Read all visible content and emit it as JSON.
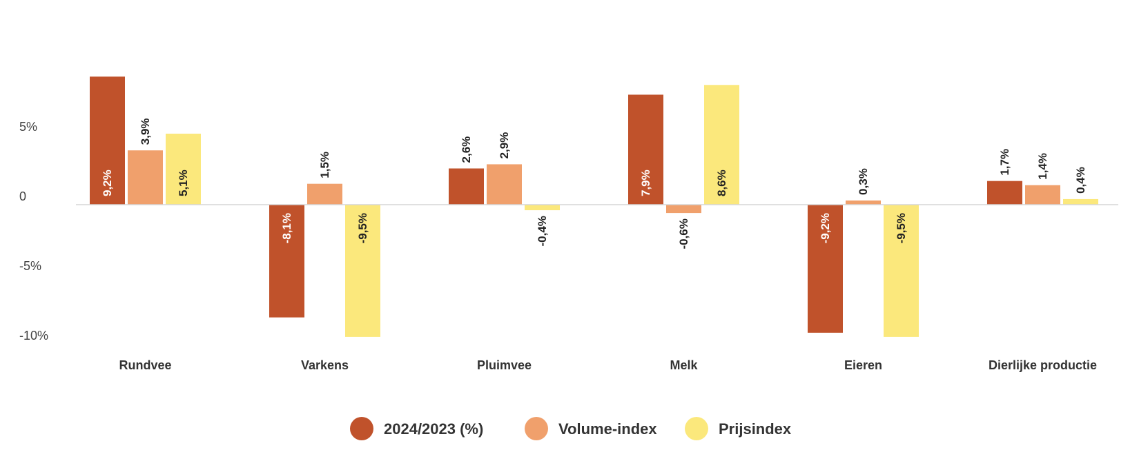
{
  "chart_data": {
    "type": "bar",
    "categories": [
      "Rundvee",
      "Varkens",
      "Pluimvee",
      "Melk",
      "Eieren",
      "Dierlijke productie"
    ],
    "series": [
      {
        "name": "2024/2023 (%)",
        "color": "#c0522b",
        "values": [
          9.2,
          -8.1,
          2.6,
          7.9,
          -9.2,
          1.7
        ],
        "labels": [
          "9,2%",
          "-8,1%",
          "2,6%",
          "7,9%",
          "-9,2%",
          "1,7%"
        ]
      },
      {
        "name": "Volume-index",
        "color": "#f0a06c",
        "values": [
          3.9,
          1.5,
          2.9,
          -0.6,
          0.3,
          1.4
        ],
        "labels": [
          "3,9%",
          "1,5%",
          "2,9%",
          "-0,6%",
          "0,3%",
          "1,4%"
        ]
      },
      {
        "name": "Prijsindex",
        "color": "#fbe87c",
        "values": [
          5.1,
          -9.5,
          -0.4,
          8.6,
          -9.5,
          0.4
        ],
        "labels": [
          "5,1%",
          "-9,5%",
          "-0,4%",
          "8,6%",
          "-9,5%",
          "0,4%"
        ]
      }
    ],
    "y_ticks": [
      {
        "value": 5,
        "label": "5%"
      },
      {
        "value": 0,
        "label": "0"
      },
      {
        "value": -5,
        "label": "-5%"
      },
      {
        "value": -10,
        "label": "-10%"
      }
    ],
    "ylim": [
      -10,
      10
    ],
    "legend_position": "bottom",
    "grid": false
  }
}
